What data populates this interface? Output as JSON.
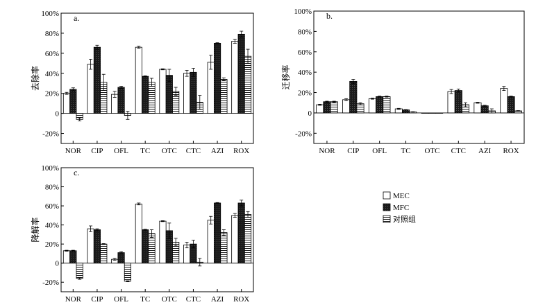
{
  "chart_data": [
    {
      "type": "bar",
      "panel_label": "a.",
      "ylabel": "去除率",
      "categories": [
        "NOR",
        "CIP",
        "OFL",
        "TC",
        "OTC",
        "CTC",
        "AZI",
        "ROX"
      ],
      "ylim": [
        -30,
        100
      ],
      "yticks": [
        "-20%",
        "0",
        "20%",
        "40%",
        "60%",
        "80%",
        "100%"
      ],
      "series": [
        {
          "name": "MEC",
          "values": [
            20,
            49,
            19,
            66,
            44,
            40,
            51,
            72
          ],
          "errors": [
            1,
            5,
            3,
            1,
            0.5,
            3,
            7,
            2
          ]
        },
        {
          "name": "MFC",
          "values": [
            24,
            66,
            26,
            37,
            38,
            41,
            70,
            79
          ],
          "errors": [
            1.5,
            2,
            1,
            0.5,
            6,
            4,
            0.5,
            3
          ]
        },
        {
          "name": "对照组",
          "values": [
            -6,
            31,
            -2,
            31,
            22,
            11,
            34,
            57
          ],
          "errors": [
            1.5,
            8,
            4,
            4,
            4,
            7,
            1.5,
            7
          ]
        }
      ]
    },
    {
      "type": "bar",
      "panel_label": "b.",
      "ylabel": "迁移率",
      "categories": [
        "NOR",
        "CIP",
        "OFL",
        "TC",
        "OTC",
        "CTC",
        "AZI",
        "ROX"
      ],
      "ylim": [
        -30,
        100
      ],
      "yticks": [
        "-20%",
        "0",
        "20%",
        "40%",
        "60%",
        "80%",
        "100%"
      ],
      "series": [
        {
          "name": "MEC",
          "values": [
            8,
            13,
            14,
            4,
            0,
            21,
            10,
            24
          ],
          "errors": [
            0.5,
            1,
            0.5,
            0.5,
            0,
            2,
            0.5,
            2
          ]
        },
        {
          "name": "MFC",
          "values": [
            11,
            31,
            16,
            3,
            0,
            22,
            7,
            16
          ],
          "errors": [
            0.5,
            2,
            0.5,
            0.3,
            0,
            1.5,
            0.5,
            0.5
          ]
        },
        {
          "name": "对照组",
          "values": [
            11,
            9,
            16,
            1,
            0,
            8,
            2,
            2
          ],
          "errors": [
            0.5,
            1,
            0.5,
            0.2,
            0,
            2,
            2,
            0.3
          ]
        }
      ]
    },
    {
      "type": "bar",
      "panel_label": "c.",
      "ylabel": "降解率",
      "categories": [
        "NOR",
        "CIP",
        "OFL",
        "TC",
        "OTC",
        "CTC",
        "AZI",
        "ROX"
      ],
      "ylim": [
        -30,
        100
      ],
      "yticks": [
        "-20%",
        "0",
        "20%",
        "40%",
        "60%",
        "80%",
        "100%"
      ],
      "series": [
        {
          "name": "MEC",
          "values": [
            13,
            36,
            4,
            62,
            44,
            19,
            45,
            50
          ],
          "errors": [
            0.5,
            3,
            1,
            1,
            0.5,
            3,
            4,
            2
          ]
        },
        {
          "name": "MFC",
          "values": [
            13,
            35,
            11,
            35,
            34,
            20,
            63,
            63
          ],
          "errors": [
            0.5,
            1,
            1,
            0.5,
            8,
            4,
            0.5,
            3
          ]
        },
        {
          "name": "对照组",
          "values": [
            -16,
            20,
            -19,
            31,
            22,
            1,
            32,
            51
          ],
          "errors": [
            1,
            0.5,
            0.5,
            4,
            4,
            4,
            3,
            3
          ]
        }
      ]
    }
  ],
  "legend": [
    {
      "label": "MEC",
      "pattern": "white"
    },
    {
      "label": "MFC",
      "pattern": "dark"
    },
    {
      "label": "对照组",
      "pattern": "hlines"
    }
  ]
}
